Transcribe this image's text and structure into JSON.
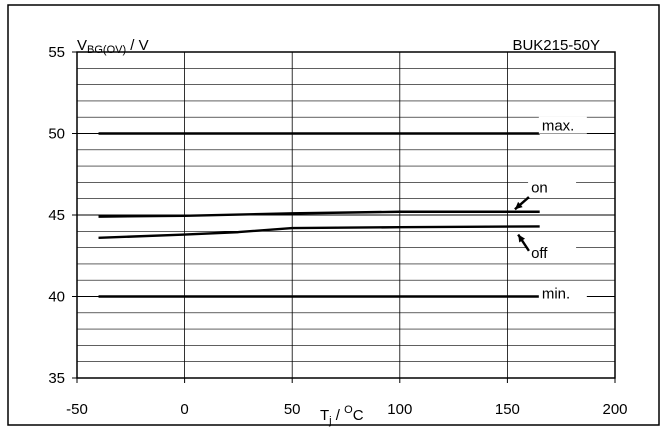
{
  "chart_data": {
    "type": "line",
    "title": "BUK215-50Y",
    "ylabel": {
      "main": "V",
      "sub": "BG(OV)",
      "unit": " / V"
    },
    "xlabel": {
      "main": "T",
      "sub": "j",
      "mid": " / ",
      "sup": "O",
      "unit": "C"
    },
    "xlim": [
      -50,
      200
    ],
    "ylim": [
      35,
      55
    ],
    "x_ticks": [
      -50,
      0,
      50,
      100,
      150,
      200
    ],
    "y_ticks": [
      35,
      40,
      45,
      50,
      55
    ],
    "x_tick_labels": [
      "-50",
      "0",
      "50",
      "100",
      "150",
      "200"
    ],
    "y_tick_labels": [
      "35",
      "40",
      "45",
      "50",
      "55"
    ],
    "grid": {
      "x_step": 50,
      "y_step": 1
    },
    "series": [
      {
        "name": "max.",
        "x": [
          -40,
          165
        ],
        "y": [
          50,
          50
        ]
      },
      {
        "name": "on",
        "x": [
          -40,
          0,
          50,
          100,
          165
        ],
        "y": [
          44.9,
          44.95,
          45.1,
          45.2,
          45.2
        ]
      },
      {
        "name": "off",
        "x": [
          -40,
          0,
          25,
          50,
          100,
          165
        ],
        "y": [
          43.6,
          43.8,
          43.95,
          44.2,
          44.25,
          44.3
        ]
      },
      {
        "name": "min.",
        "x": [
          -40,
          165
        ],
        "y": [
          40,
          40
        ]
      }
    ]
  }
}
